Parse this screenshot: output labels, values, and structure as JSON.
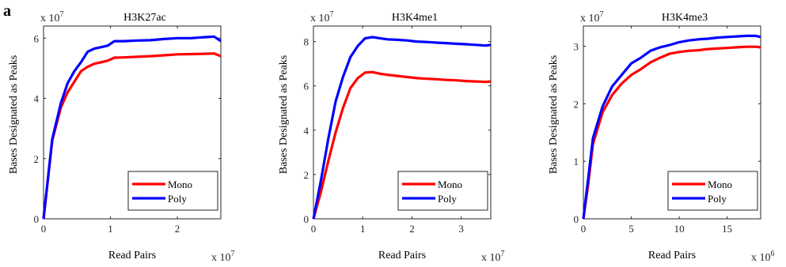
{
  "figure": {
    "panel_letter": "a"
  },
  "colors": {
    "Mono": "#ff0000",
    "Poly": "#0000ff"
  },
  "chart_data": [
    {
      "type": "line",
      "title": "H3K27ac",
      "xlabel": "Read Pairs",
      "ylabel": "Bases Designated as Peaks",
      "x_multiplier": "x 10",
      "x_exponent": "7",
      "y_multiplier": "x 10",
      "y_exponent": "7",
      "xlim": [
        0,
        2.65
      ],
      "ylim": [
        0,
        6.4
      ],
      "xticks": [
        0,
        1,
        2
      ],
      "yticks": [
        0,
        2,
        4,
        6
      ],
      "legend_position": "bottom-right",
      "series": [
        {
          "name": "Mono",
          "x": [
            0,
            0.13,
            0.26,
            0.36,
            0.46,
            0.56,
            0.66,
            0.76,
            0.86,
            0.96,
            1.06,
            1.2,
            1.4,
            1.6,
            1.8,
            2.0,
            2.2,
            2.4,
            2.55,
            2.65
          ],
          "y": [
            0,
            2.6,
            3.7,
            4.2,
            4.55,
            4.9,
            5.05,
            5.15,
            5.2,
            5.25,
            5.35,
            5.36,
            5.38,
            5.4,
            5.43,
            5.46,
            5.47,
            5.48,
            5.49,
            5.4
          ]
        },
        {
          "name": "Poly",
          "x": [
            0,
            0.13,
            0.26,
            0.36,
            0.46,
            0.56,
            0.66,
            0.76,
            0.86,
            0.96,
            1.06,
            1.2,
            1.4,
            1.6,
            1.8,
            2.0,
            2.2,
            2.4,
            2.55,
            2.65
          ],
          "y": [
            0,
            2.65,
            3.85,
            4.5,
            4.9,
            5.2,
            5.55,
            5.65,
            5.7,
            5.75,
            5.9,
            5.9,
            5.92,
            5.93,
            5.97,
            6.0,
            6.0,
            6.03,
            6.05,
            5.9
          ]
        }
      ]
    },
    {
      "type": "line",
      "title": "H3K4me1",
      "xlabel": "Read Pairs",
      "ylabel": "Bases Designated as Peaks",
      "x_multiplier": "x 10",
      "x_exponent": "7",
      "y_multiplier": "x 10",
      "y_exponent": "7",
      "xlim": [
        0,
        3.6
      ],
      "ylim": [
        0,
        8.7
      ],
      "xticks": [
        0,
        1,
        2,
        3
      ],
      "yticks": [
        0,
        2,
        4,
        6,
        8
      ],
      "legend_position": "bottom-right",
      "series": [
        {
          "name": "Mono",
          "x": [
            0,
            0.15,
            0.3,
            0.45,
            0.6,
            0.75,
            0.9,
            1.05,
            1.2,
            1.35,
            1.5,
            1.7,
            1.9,
            2.1,
            2.3,
            2.5,
            2.7,
            2.9,
            3.1,
            3.3,
            3.5,
            3.6
          ],
          "y": [
            0,
            1.2,
            2.6,
            3.9,
            5.0,
            5.9,
            6.35,
            6.6,
            6.62,
            6.55,
            6.5,
            6.45,
            6.4,
            6.35,
            6.32,
            6.3,
            6.27,
            6.25,
            6.22,
            6.2,
            6.18,
            6.2
          ]
        },
        {
          "name": "Poly",
          "x": [
            0,
            0.15,
            0.3,
            0.45,
            0.6,
            0.75,
            0.9,
            1.05,
            1.2,
            1.35,
            1.5,
            1.7,
            1.9,
            2.1,
            2.3,
            2.5,
            2.7,
            2.9,
            3.1,
            3.3,
            3.5,
            3.6
          ],
          "y": [
            0,
            1.7,
            3.6,
            5.3,
            6.4,
            7.3,
            7.8,
            8.15,
            8.2,
            8.15,
            8.1,
            8.08,
            8.05,
            8.0,
            7.98,
            7.95,
            7.93,
            7.9,
            7.88,
            7.85,
            7.82,
            7.85
          ]
        }
      ]
    },
    {
      "type": "line",
      "title": "H3K4me3",
      "xlabel": "Read Pairs",
      "ylabel": "Bases Designated as Peaks",
      "x_multiplier": "x 10",
      "x_exponent": "6",
      "y_multiplier": "x 10",
      "y_exponent": "7",
      "xlim": [
        0,
        18.5
      ],
      "ylim": [
        0,
        3.35
      ],
      "xticks": [
        0,
        5,
        10,
        15
      ],
      "yticks": [
        0,
        1,
        2,
        3
      ],
      "legend_position": "bottom-right",
      "series": [
        {
          "name": "Mono",
          "x": [
            0,
            0.5,
            1,
            2,
            3,
            4,
            5,
            6,
            7,
            8,
            9,
            10,
            11,
            12,
            13,
            14,
            15,
            16,
            17,
            18,
            18.5
          ],
          "y": [
            0,
            0.6,
            1.3,
            1.85,
            2.15,
            2.35,
            2.5,
            2.6,
            2.72,
            2.8,
            2.87,
            2.9,
            2.92,
            2.93,
            2.95,
            2.96,
            2.97,
            2.98,
            2.99,
            2.99,
            2.98
          ]
        },
        {
          "name": "Poly",
          "x": [
            0,
            0.5,
            1,
            2,
            3,
            4,
            5,
            6,
            7,
            8,
            9,
            10,
            11,
            12,
            13,
            14,
            15,
            16,
            17,
            18,
            18.5
          ],
          "y": [
            0,
            0.7,
            1.4,
            1.95,
            2.3,
            2.5,
            2.7,
            2.8,
            2.92,
            2.98,
            3.02,
            3.07,
            3.1,
            3.12,
            3.13,
            3.15,
            3.16,
            3.17,
            3.18,
            3.18,
            3.16
          ]
        }
      ]
    }
  ]
}
